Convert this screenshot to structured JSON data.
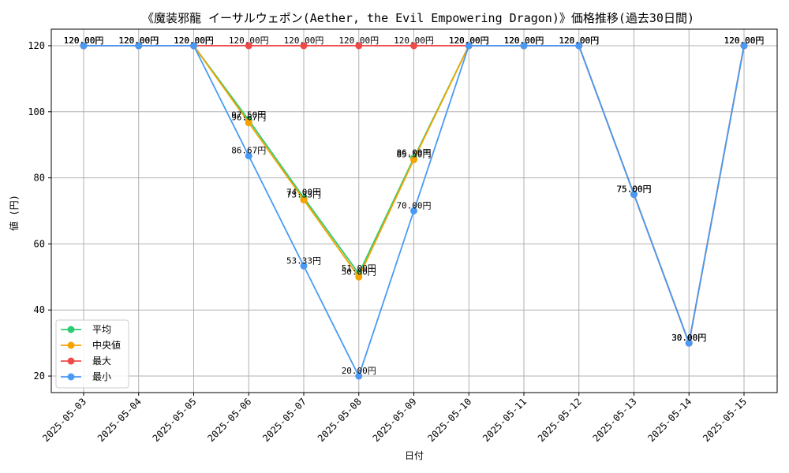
{
  "chart_data": {
    "type": "line",
    "title": "《魔装邪龍 イーサルウェポン(Aether, the Evil Empowering Dragon)》価格推移(過去30日間)",
    "xlabel": "日付",
    "ylabel": "値 (円)",
    "ylim": [
      15,
      125
    ],
    "yticks": [
      20,
      40,
      60,
      80,
      100,
      120
    ],
    "grid": true,
    "legend_position": "lower-left",
    "label_suffix": "円",
    "categories": [
      "2025-05-03",
      "2025-05-04",
      "2025-05-05",
      "2025-05-06",
      "2025-05-07",
      "2025-05-08",
      "2025-05-09",
      "2025-05-10",
      "2025-05-11",
      "2025-05-12",
      "2025-05-13",
      "2025-05-14",
      "2025-05-15"
    ],
    "series": [
      {
        "name": "平均",
        "color": "#2ecc71",
        "values": [
          120,
          120,
          120,
          97.5,
          74.0,
          51.0,
          86.0,
          120,
          120,
          120,
          75,
          30,
          120
        ]
      },
      {
        "name": "中央値",
        "color": "#f5a300",
        "values": [
          120,
          120,
          120,
          96.67,
          73.33,
          50.0,
          85.5,
          120,
          120,
          120,
          75,
          30,
          120
        ]
      },
      {
        "name": "最大",
        "color": "#f04b4b",
        "values": [
          120,
          120,
          120,
          120,
          120,
          120,
          120,
          120,
          120,
          120,
          75,
          30,
          120
        ]
      },
      {
        "name": "最小",
        "color": "#4a9af5",
        "values": [
          120,
          120,
          120,
          86.67,
          53.33,
          20.0,
          70.0,
          120,
          120,
          120,
          75,
          30,
          120
        ]
      }
    ]
  }
}
